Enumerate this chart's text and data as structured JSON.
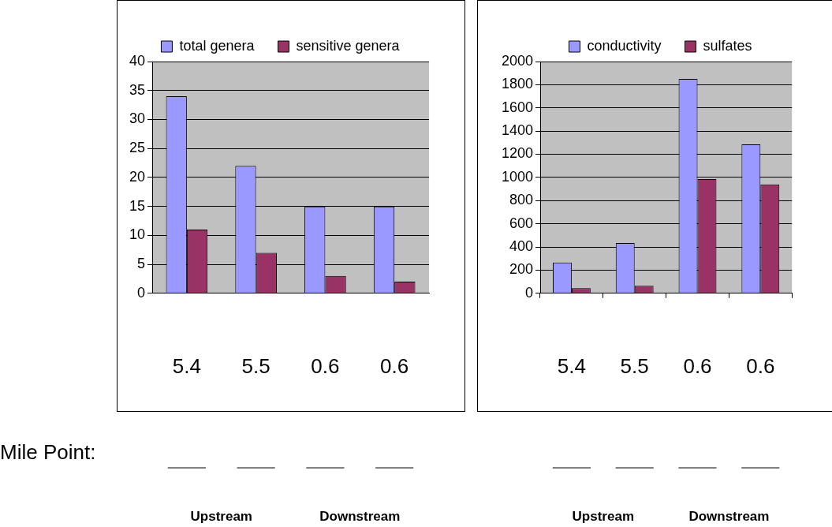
{
  "chart_data": [
    {
      "type": "bar",
      "categories": [
        "5.4",
        "5.5",
        "0.6",
        "0.6"
      ],
      "series": [
        {
          "name": "total genera",
          "color": "#9999ff",
          "values": [
            34,
            22,
            15,
            15
          ]
        },
        {
          "name": "sensitive genera",
          "color": "#993366",
          "values": [
            11,
            7,
            3,
            2
          ]
        }
      ],
      "ylim": [
        0,
        40
      ],
      "yticks": [
        0,
        5,
        10,
        15,
        20,
        25,
        30,
        35,
        40
      ],
      "grid": "y",
      "legend": "top",
      "annotations": [
        "Mile Point:",
        "Upstream",
        "Downstream"
      ]
    },
    {
      "type": "bar",
      "categories": [
        "5.4",
        "5.5",
        "0.6",
        "0.6"
      ],
      "series": [
        {
          "name": "conductivity",
          "color": "#9999ff",
          "values": [
            265,
            435,
            1850,
            1285
          ]
        },
        {
          "name": "sulfates",
          "color": "#993366",
          "values": [
            45,
            65,
            985,
            940
          ]
        }
      ],
      "ylim": [
        0,
        2000
      ],
      "yticks": [
        0,
        200,
        400,
        600,
        800,
        1000,
        1200,
        1400,
        1600,
        1800,
        2000
      ],
      "grid": "y",
      "legend": "top",
      "annotations": [
        "Upstream",
        "Downstream"
      ]
    }
  ]
}
